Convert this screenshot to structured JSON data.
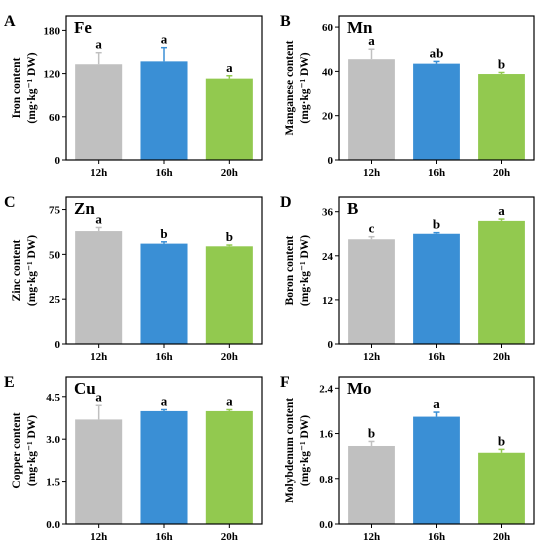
{
  "chart_data": [
    {
      "type": "bar",
      "panel": "A",
      "element": "Fe",
      "ylabel_line1": "Iron content",
      "ylabel_line2": "(mg·kg⁻¹ DW)",
      "categories": [
        "12h",
        "16h",
        "20h"
      ],
      "values": [
        133,
        137,
        113
      ],
      "errors": [
        16,
        19,
        4
      ],
      "significance": [
        "a",
        "a",
        "a"
      ],
      "colors": [
        "#c0c0c0",
        "#3a8fd5",
        "#92c94f"
      ],
      "ylim": [
        0,
        200
      ],
      "yticks": [
        0,
        60,
        120,
        180
      ],
      "ytick_labels": [
        "0",
        "60",
        "120",
        "180"
      ]
    },
    {
      "type": "bar",
      "panel": "B",
      "element": "Mn",
      "ylabel_line1": "Manganese content",
      "ylabel_line2": "(mg·kg⁻¹ DW)",
      "categories": [
        "12h",
        "16h",
        "20h"
      ],
      "values": [
        45.5,
        43.5,
        38.8
      ],
      "errors": [
        4.5,
        1.0,
        0.7
      ],
      "significance": [
        "a",
        "ab",
        "b"
      ],
      "colors": [
        "#c0c0c0",
        "#3a8fd5",
        "#92c94f"
      ],
      "ylim": [
        0,
        65
      ],
      "yticks": [
        0,
        20,
        40,
        60
      ],
      "ytick_labels": [
        "0",
        "20",
        "40",
        "60"
      ]
    },
    {
      "type": "bar",
      "panel": "C",
      "element": "Zn",
      "ylabel_line1": "Zinc content",
      "ylabel_line2": "(mg·kg⁻¹ DW)",
      "categories": [
        "12h",
        "16h",
        "20h"
      ],
      "values": [
        63,
        56,
        54.5
      ],
      "errors": [
        2,
        1,
        0.7
      ],
      "significance": [
        "a",
        "b",
        "b"
      ],
      "colors": [
        "#c0c0c0",
        "#3a8fd5",
        "#92c94f"
      ],
      "ylim": [
        0,
        82
      ],
      "yticks": [
        0,
        25,
        50,
        75
      ],
      "ytick_labels": [
        "0",
        "25",
        "50",
        "75"
      ]
    },
    {
      "type": "bar",
      "panel": "D",
      "element": "B",
      "ylabel_line1": "Boron content",
      "ylabel_line2": "(mg·kg⁻¹ DW)",
      "categories": [
        "12h",
        "16h",
        "20h"
      ],
      "values": [
        28.5,
        30,
        33.5
      ],
      "errors": [
        0.7,
        0.3,
        0.5
      ],
      "significance": [
        "c",
        "b",
        "a"
      ],
      "colors": [
        "#c0c0c0",
        "#3a8fd5",
        "#92c94f"
      ],
      "ylim": [
        0,
        40
      ],
      "yticks": [
        0,
        12,
        24,
        36
      ],
      "ytick_labels": [
        "0",
        "12",
        "24",
        "36"
      ]
    },
    {
      "type": "bar",
      "panel": "E",
      "element": "Cu",
      "ylabel_line1": "Copper content",
      "ylabel_line2": "(mg·kg⁻¹ DW)",
      "categories": [
        "12h",
        "16h",
        "20h"
      ],
      "values": [
        3.7,
        4.0,
        4.0
      ],
      "errors": [
        0.5,
        0.05,
        0.05
      ],
      "significance": [
        "a",
        "a",
        "a"
      ],
      "colors": [
        "#c0c0c0",
        "#3a8fd5",
        "#92c94f"
      ],
      "ylim": [
        0,
        5.2
      ],
      "yticks": [
        0,
        1.5,
        3.0,
        4.5
      ],
      "ytick_labels": [
        "0.0",
        "1.5",
        "3.0",
        "4.5"
      ]
    },
    {
      "type": "bar",
      "panel": "F",
      "element": "Mo",
      "ylabel_line1": "Molybdenum content",
      "ylabel_line2": "(mg·kg⁻¹ DW)",
      "categories": [
        "12h",
        "16h",
        "20h"
      ],
      "values": [
        1.38,
        1.9,
        1.26
      ],
      "errors": [
        0.08,
        0.08,
        0.06
      ],
      "significance": [
        "b",
        "a",
        "b"
      ],
      "colors": [
        "#c0c0c0",
        "#3a8fd5",
        "#92c94f"
      ],
      "ylim": [
        0,
        2.6
      ],
      "yticks": [
        0,
        0.8,
        1.6,
        2.4
      ],
      "ytick_labels": [
        "0.0",
        "0.8",
        "1.6",
        "2.4"
      ]
    }
  ]
}
